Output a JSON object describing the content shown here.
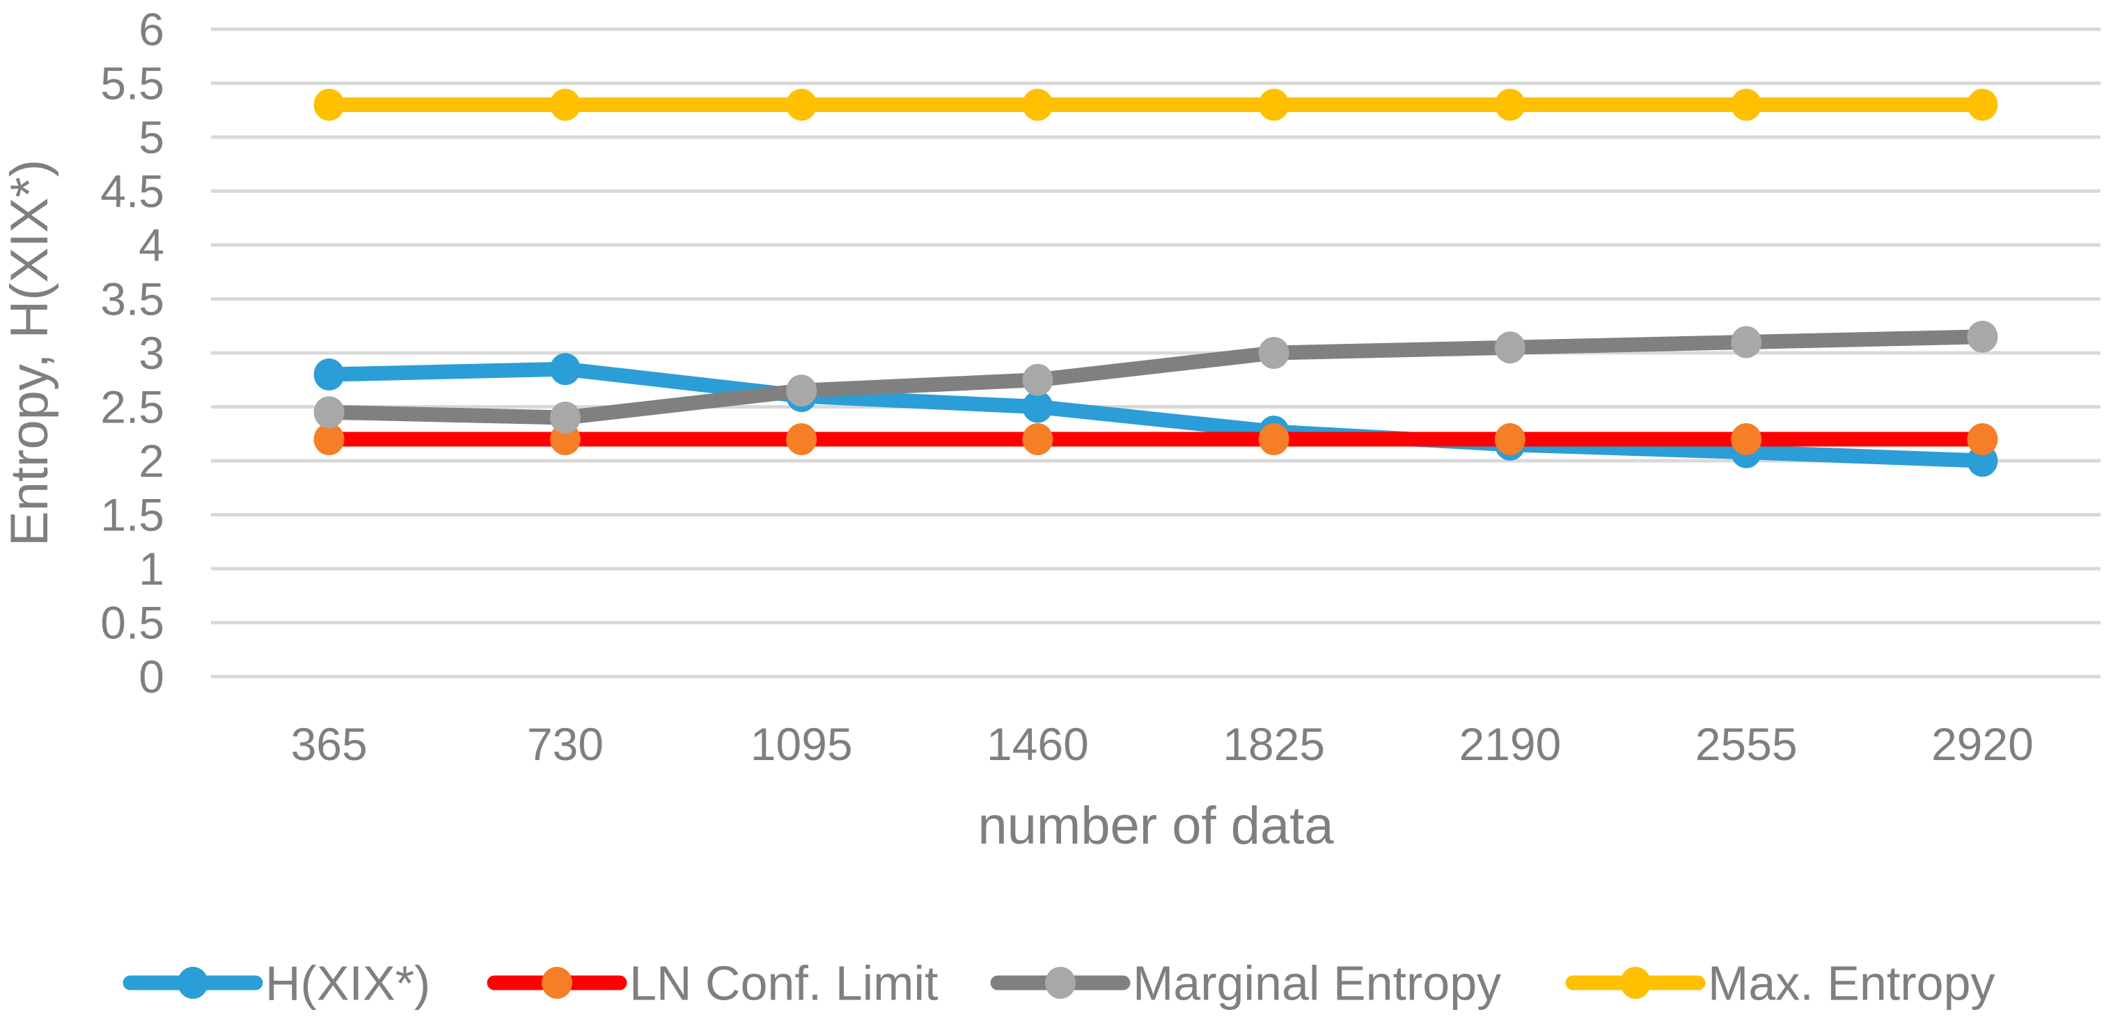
{
  "chart_data": {
    "type": "line",
    "title": "",
    "xlabel": "number of data",
    "ylabel": "Entropy, H(XIX*)",
    "categories": [
      365,
      730,
      1095,
      1460,
      1825,
      2190,
      2555,
      2920
    ],
    "y_ticks": [
      0,
      0.5,
      1,
      1.5,
      2,
      2.5,
      3,
      3.5,
      4,
      4.5,
      5,
      5.5,
      6
    ],
    "ylim": [
      0,
      6
    ],
    "grid": true,
    "legend_position": "bottom",
    "series": [
      {
        "name": "H(XIX*)",
        "values": [
          2.8,
          2.85,
          2.6,
          2.5,
          2.27,
          2.15,
          2.08,
          2.0
        ],
        "line_color": "#2B9DD7",
        "marker_color": "#2B9DD7"
      },
      {
        "name": "LN Conf. Limit",
        "values": [
          2.2,
          2.2,
          2.2,
          2.2,
          2.2,
          2.2,
          2.2,
          2.2
        ],
        "line_color": "#FF0000",
        "marker_color": "#F57E27"
      },
      {
        "name": "Marginal Entropy",
        "values": [
          2.45,
          2.4,
          2.65,
          2.75,
          3.0,
          3.05,
          3.1,
          3.15
        ],
        "line_color": "#808080",
        "marker_color": "#A8A8A8"
      },
      {
        "name": "Max. Entropy",
        "values": [
          5.3,
          5.3,
          5.3,
          5.3,
          5.3,
          5.3,
          5.3,
          5.3
        ],
        "line_color": "#FFC000",
        "marker_color": "#FFC000"
      }
    ],
    "colors": {
      "gridline": "#D9D9D9",
      "text": "#7F7F7F",
      "background": "#FFFFFF"
    }
  }
}
